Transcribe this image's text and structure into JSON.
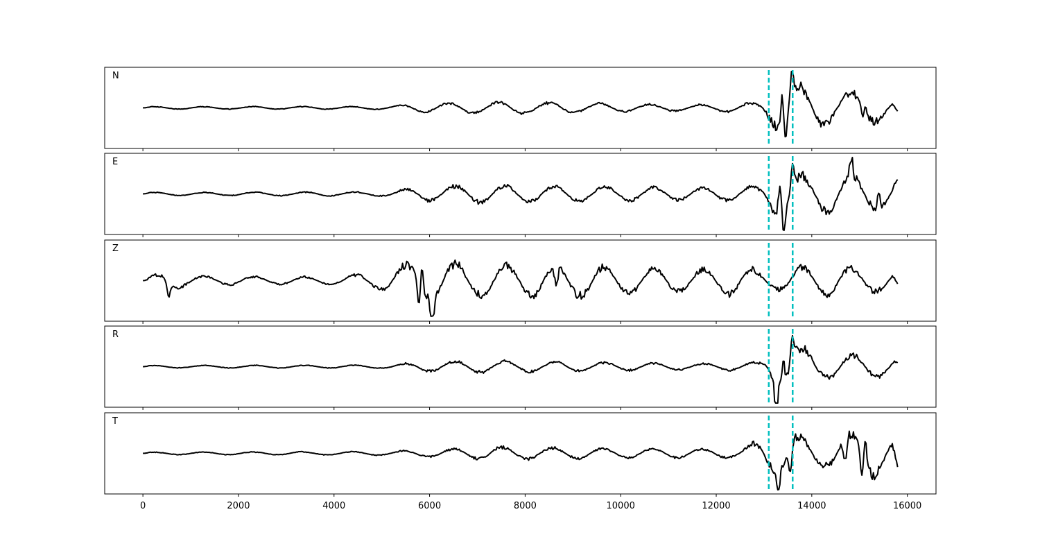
{
  "chart_data": {
    "type": "line",
    "title": "",
    "xlabel": "",
    "ylabel": "",
    "xlim": [
      -800,
      16600
    ],
    "x_start": 0,
    "x_end": 15800,
    "x_ticks": [
      0,
      2000,
      4000,
      6000,
      8000,
      10000,
      12000,
      14000,
      16000
    ],
    "x_tick_labels": [
      "0",
      "2000",
      "4000",
      "6000",
      "8000",
      "10000",
      "12000",
      "14000",
      "16000"
    ],
    "markers": [
      {
        "x": 13100,
        "color": "#00bfbf",
        "style": "dashed"
      },
      {
        "x": 13600,
        "color": "#00bfbf",
        "style": "dashed"
      }
    ],
    "grid": false,
    "line_color": "#000000",
    "panels": [
      {
        "label": "N",
        "ylim": [
          -1.0,
          1.0
        ],
        "envelope": [
          {
            "x": 0,
            "amp": 0.04
          },
          {
            "x": 5000,
            "amp": 0.05
          },
          {
            "x": 5600,
            "amp": 0.13
          },
          {
            "x": 7500,
            "amp": 0.2
          },
          {
            "x": 11500,
            "amp": 0.1
          },
          {
            "x": 12900,
            "amp": 0.18
          },
          {
            "x": 13300,
            "amp": 0.75
          },
          {
            "x": 13600,
            "amp": 0.8
          },
          {
            "x": 14500,
            "amp": 0.5
          },
          {
            "x": 15100,
            "amp": 0.6
          },
          {
            "x": 15800,
            "amp": 0.2
          }
        ],
        "events": [
          {
            "x": 13380,
            "value": 0.8
          },
          {
            "x": 13450,
            "value": -0.85
          },
          {
            "x": 13590,
            "value": 0.95
          },
          {
            "x": 15100,
            "value": 0.6
          },
          {
            "x": 15080,
            "value": -0.7
          }
        ],
        "end_value": -0.1
      },
      {
        "label": "E",
        "ylim": [
          -1.0,
          1.0
        ],
        "envelope": [
          {
            "x": 0,
            "amp": 0.05
          },
          {
            "x": 5000,
            "amp": 0.07
          },
          {
            "x": 5800,
            "amp": 0.22
          },
          {
            "x": 7000,
            "amp": 0.3
          },
          {
            "x": 11500,
            "amp": 0.2
          },
          {
            "x": 12900,
            "amp": 0.25
          },
          {
            "x": 13300,
            "amp": 0.8
          },
          {
            "x": 14000,
            "amp": 0.55
          },
          {
            "x": 14600,
            "amp": 0.65
          },
          {
            "x": 15500,
            "amp": 0.55
          },
          {
            "x": 15800,
            "amp": 0.4
          }
        ],
        "events": [
          {
            "x": 13330,
            "value": 0.9
          },
          {
            "x": 13420,
            "value": -0.75
          },
          {
            "x": 13600,
            "value": 0.8
          },
          {
            "x": 14830,
            "value": 0.6
          },
          {
            "x": 15400,
            "value": 0.55
          }
        ],
        "end_value": 0.4
      },
      {
        "label": "Z",
        "ylim": [
          -1.0,
          1.0
        ],
        "envelope": [
          {
            "x": 0,
            "amp": 0.05
          },
          {
            "x": 400,
            "amp": 0.3
          },
          {
            "x": 1200,
            "amp": 0.15
          },
          {
            "x": 4000,
            "amp": 0.12
          },
          {
            "x": 5000,
            "amp": 0.3
          },
          {
            "x": 5800,
            "amp": 0.75
          },
          {
            "x": 7000,
            "amp": 0.5
          },
          {
            "x": 9000,
            "amp": 0.55
          },
          {
            "x": 11500,
            "amp": 0.35
          },
          {
            "x": 12500,
            "amp": 0.5
          },
          {
            "x": 13100,
            "amp": 0.25
          },
          {
            "x": 14000,
            "amp": 0.55
          },
          {
            "x": 15800,
            "amp": 0.3
          }
        ],
        "events": [
          {
            "x": 540,
            "value": -0.45
          },
          {
            "x": 5780,
            "value": -0.85
          },
          {
            "x": 5840,
            "value": 0.85
          },
          {
            "x": 6060,
            "value": -0.7
          },
          {
            "x": 8650,
            "value": -0.7
          }
        ],
        "end_value": -0.1
      },
      {
        "label": "R",
        "ylim": [
          -1.0,
          1.0
        ],
        "envelope": [
          {
            "x": 0,
            "amp": 0.04
          },
          {
            "x": 5000,
            "amp": 0.05
          },
          {
            "x": 5800,
            "amp": 0.15
          },
          {
            "x": 7000,
            "amp": 0.2
          },
          {
            "x": 11500,
            "amp": 0.1
          },
          {
            "x": 12900,
            "amp": 0.15
          },
          {
            "x": 13300,
            "amp": 0.7
          },
          {
            "x": 13600,
            "amp": 0.85
          },
          {
            "x": 14200,
            "amp": 0.4
          },
          {
            "x": 15800,
            "amp": 0.35
          }
        ],
        "events": [
          {
            "x": 13250,
            "value": -0.8
          },
          {
            "x": 13400,
            "value": 0.75
          },
          {
            "x": 13590,
            "value": 0.85
          }
        ],
        "end_value": 0.1
      },
      {
        "label": "T",
        "ylim": [
          -1.0,
          1.0
        ],
        "envelope": [
          {
            "x": 0,
            "amp": 0.04
          },
          {
            "x": 5000,
            "amp": 0.06
          },
          {
            "x": 6000,
            "amp": 0.12
          },
          {
            "x": 7400,
            "amp": 0.22
          },
          {
            "x": 10000,
            "amp": 0.15
          },
          {
            "x": 12500,
            "amp": 0.15
          },
          {
            "x": 13100,
            "amp": 0.6
          },
          {
            "x": 13500,
            "amp": 0.7
          },
          {
            "x": 14200,
            "amp": 0.4
          },
          {
            "x": 14800,
            "amp": 0.65
          },
          {
            "x": 15100,
            "amp": 0.9
          },
          {
            "x": 15500,
            "amp": 0.6
          },
          {
            "x": 15800,
            "amp": 0.5
          }
        ],
        "events": [
          {
            "x": 13300,
            "value": -0.7
          },
          {
            "x": 13550,
            "value": -0.8
          },
          {
            "x": 15120,
            "value": 0.85
          },
          {
            "x": 14700,
            "value": -0.75
          },
          {
            "x": 15050,
            "value": -0.8
          }
        ],
        "end_value": -0.4
      }
    ]
  }
}
